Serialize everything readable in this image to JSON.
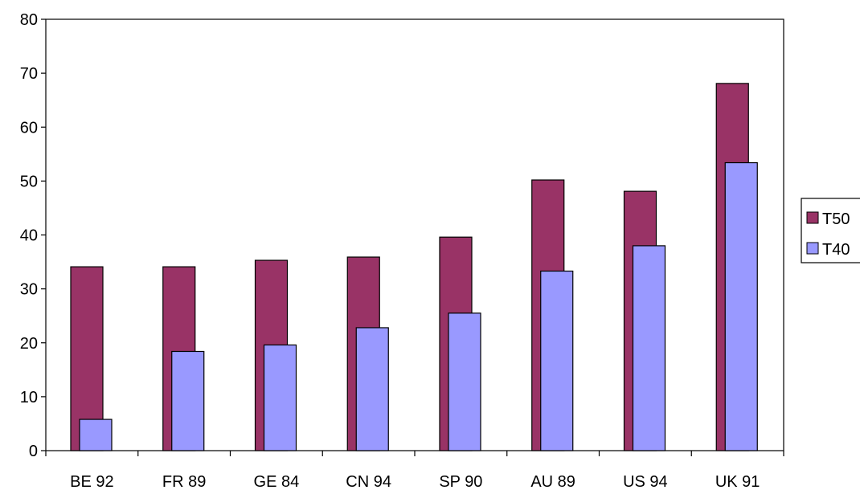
{
  "chart_data": {
    "type": "bar",
    "categories": [
      "BE 92",
      "FR 89",
      "GE 84",
      "CN 94",
      "SP 90",
      "AU 89",
      "US 94",
      "UK 91"
    ],
    "series": [
      {
        "name": "T50",
        "color": "#993366",
        "values": [
          34.1,
          34.1,
          35.3,
          35.9,
          39.6,
          50.2,
          48.1,
          68.1
        ]
      },
      {
        "name": "T40",
        "color": "#9999FF",
        "values": [
          5.8,
          18.4,
          19.6,
          22.8,
          25.5,
          33.3,
          38.0,
          53.4
        ]
      }
    ],
    "ylim": [
      0,
      80
    ],
    "yticks": [
      0,
      10,
      20,
      30,
      40,
      50,
      60,
      70,
      80
    ],
    "grid": false,
    "legend": "right",
    "title": "",
    "xlabel": "",
    "ylabel": ""
  }
}
